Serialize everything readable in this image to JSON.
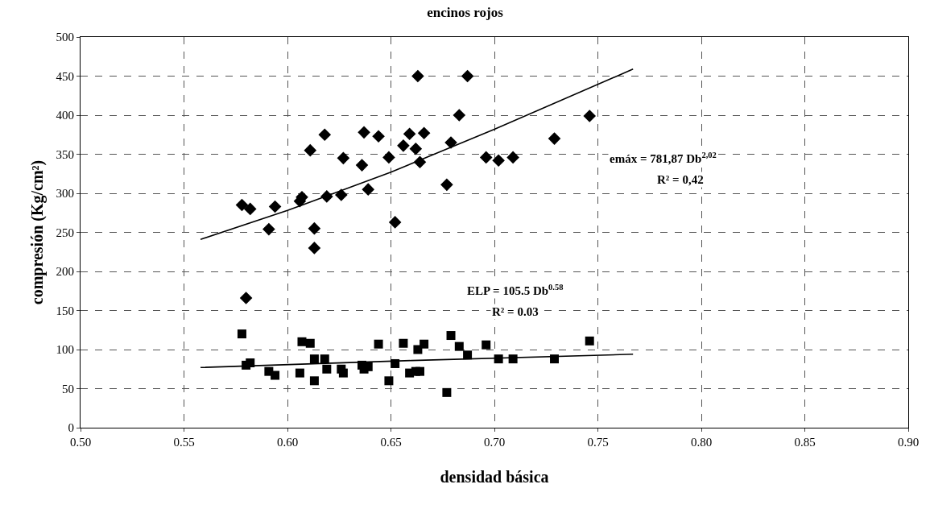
{
  "chart_data": {
    "type": "scatter",
    "title": "encinos rojos",
    "xlabel": "densidad básica",
    "ylabel": "compresión (Kg/cm²)",
    "xlim": [
      0.5,
      0.9
    ],
    "xticks": [
      {
        "value": 0.5,
        "label": "0.50"
      },
      {
        "value": 0.55,
        "label": "0.55"
      },
      {
        "value": 0.6,
        "label": "0.60"
      },
      {
        "value": 0.65,
        "label": "0.65"
      },
      {
        "value": 0.7,
        "label": "0.70"
      },
      {
        "value": 0.75,
        "label": "0.75"
      },
      {
        "value": 0.8,
        "label": "0.80"
      },
      {
        "value": 0.85,
        "label": "0.85"
      },
      {
        "value": 0.9,
        "label": "0.90"
      }
    ],
    "ylim": [
      0,
      500
    ],
    "yticks": [
      0,
      50,
      100,
      150,
      200,
      250,
      300,
      350,
      400,
      450,
      500
    ],
    "grid": true,
    "series": [
      {
        "marker": "diamond",
        "color": "#000000",
        "x": [
          0.578,
          0.582,
          0.58,
          0.591,
          0.594,
          0.606,
          0.607,
          0.611,
          0.613,
          0.613,
          0.618,
          0.619,
          0.626,
          0.627,
          0.636,
          0.637,
          0.639,
          0.644,
          0.649,
          0.652,
          0.656,
          0.659,
          0.662,
          0.663,
          0.664,
          0.666,
          0.677,
          0.679,
          0.683,
          0.687,
          0.696,
          0.702,
          0.709,
          0.729,
          0.746
        ],
        "values": [
          285,
          280,
          166,
          254,
          283,
          290,
          295,
          355,
          255,
          230,
          375,
          296,
          298,
          345,
          336,
          378,
          305,
          373,
          346,
          263,
          361,
          376,
          357,
          450,
          340,
          377,
          311,
          365,
          400,
          450,
          346,
          342,
          346,
          370,
          399
        ]
      },
      {
        "marker": "square",
        "color": "#000000",
        "x": [
          0.578,
          0.58,
          0.582,
          0.591,
          0.594,
          0.606,
          0.607,
          0.611,
          0.613,
          0.613,
          0.618,
          0.619,
          0.626,
          0.627,
          0.636,
          0.637,
          0.639,
          0.644,
          0.649,
          0.652,
          0.656,
          0.659,
          0.662,
          0.663,
          0.664,
          0.666,
          0.677,
          0.679,
          0.683,
          0.687,
          0.696,
          0.702,
          0.709,
          0.729,
          0.746
        ],
        "values": [
          120,
          80,
          83,
          72,
          67,
          70,
          110,
          108,
          88,
          60,
          88,
          75,
          75,
          70,
          80,
          75,
          78,
          107,
          60,
          82,
          108,
          70,
          72,
          100,
          72,
          107,
          45,
          118,
          104,
          93,
          106,
          88,
          88,
          88,
          111
        ]
      },
      {
        "type": "line",
        "marker": "none",
        "color": "#000000",
        "x": [
          0.558,
          0.6,
          0.65,
          0.7,
          0.767
        ],
        "values": [
          241,
          278,
          327,
          382,
          459
        ]
      },
      {
        "type": "line",
        "marker": "none",
        "color": "#000000",
        "x": [
          0.558,
          0.66,
          0.767
        ],
        "values": [
          77,
          86,
          94
        ]
      }
    ],
    "annotations": [
      "emáx = 781,87 Db$^{2,02}$",
      "R² = 0,42",
      "ELP = 105.5 Db$^{0.58}$",
      "R² = 0.03"
    ]
  }
}
